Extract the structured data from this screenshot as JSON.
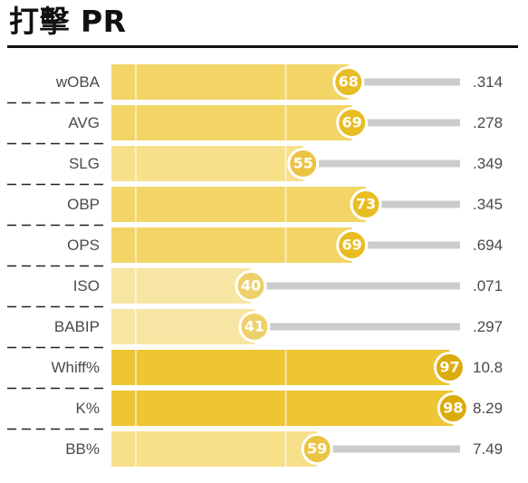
{
  "title": "打擊 PR",
  "chart_data": {
    "type": "bar",
    "orientation": "horizontal",
    "title": "打擊 PR",
    "xlim": [
      0,
      100
    ],
    "categories": [
      "wOBA",
      "AVG",
      "SLG",
      "OBP",
      "OPS",
      "ISO",
      "BABIP",
      "Whiff%",
      "K%",
      "BB%"
    ],
    "series": [
      {
        "values": [
          68,
          69,
          55,
          73,
          69,
          40,
          41,
          97,
          98,
          59
        ]
      }
    ],
    "stat_labels": [
      ".314",
      ".278",
      ".349",
      ".345",
      ".694",
      ".071",
      ".297",
      "10.8",
      "8.29",
      "7.49"
    ],
    "grid": false,
    "legend": "none"
  },
  "colors": {
    "track": "#cccccc",
    "divider": "#ffffff",
    "separator": "#222222",
    "title_rule": "#111111",
    "pr_outline": "#ffffff",
    "bar_scale": [
      {
        "min": 90,
        "color": "#eec533"
      },
      {
        "min": 60,
        "color": "#f2d566"
      },
      {
        "min": 50,
        "color": "#f6e08a"
      },
      {
        "min": 0,
        "color": "#f7e6a3"
      }
    ],
    "badge_scale": [
      {
        "min": 90,
        "color": "#dcab0d"
      },
      {
        "min": 60,
        "color": "#e8bd23"
      },
      {
        "min": 50,
        "color": "#ebc444"
      },
      {
        "min": 0,
        "color": "#eed06b"
      }
    ]
  }
}
